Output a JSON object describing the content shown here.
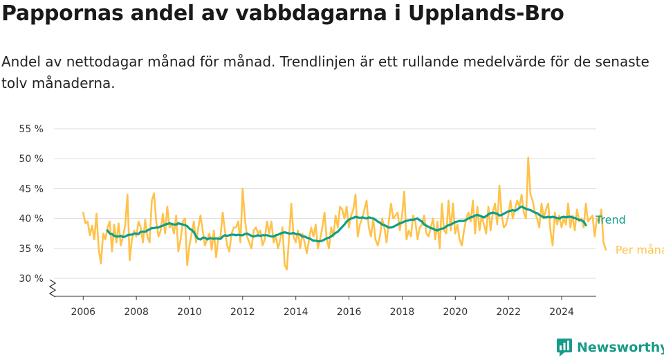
{
  "title": "Pappornas andel av vabbdagarna i Upplands-Bro",
  "subtitle": "Andel av nettodagar månad för månad. Trendlinjen är ett rullande medelvärde för de senaste tolv månaderna.",
  "brand": {
    "name": "Newsworthy"
  },
  "colors": {
    "monthly": "#ffc24a",
    "trend": "#0f9e8a",
    "grid": "#dddddd",
    "axis": "#333333",
    "brand": "#179a8a"
  },
  "chart_data": {
    "type": "line",
    "y_ticks": [
      "30 %",
      "35 %",
      "40 %",
      "45 %",
      "50 %",
      "55 %"
    ],
    "y_tick_values": [
      30,
      35,
      40,
      45,
      50,
      55
    ],
    "x_ticks": [
      "2006",
      "2008",
      "2010",
      "2012",
      "2014",
      "2016",
      "2018",
      "2020",
      "2022",
      "2024"
    ],
    "x_tick_values": [
      2006,
      2008,
      2010,
      2012,
      2014,
      2016,
      2018,
      2020,
      2022,
      2024
    ],
    "ylim": [
      27,
      55
    ],
    "xlim": [
      2004.9,
      2025.3
    ],
    "y_axis_break": true,
    "grid": true,
    "series": [
      {
        "name": "Per månad",
        "start": 2006.0,
        "step": 0.0833,
        "values": [
          41.0,
          39.2,
          39.5,
          37.2,
          38.8,
          36.5,
          40.8,
          35.0,
          32.5,
          37.5,
          36.5,
          38.5,
          39.5,
          34.5,
          39.0,
          36.0,
          39.2,
          35.5,
          37.0,
          39.0,
          44.0,
          33.0,
          36.5,
          38.0,
          37.0,
          39.5,
          38.5,
          36.0,
          39.8,
          37.0,
          36.0,
          43.0,
          44.2,
          39.5,
          37.0,
          38.0,
          40.8,
          37.5,
          42.0,
          38.5,
          39.0,
          37.5,
          40.5,
          34.5,
          36.5,
          39.5,
          40.0,
          32.2,
          35.5,
          37.5,
          39.5,
          36.0,
          38.5,
          40.5,
          38.0,
          35.5,
          36.5,
          37.5,
          34.8,
          38.0,
          33.5,
          36.8,
          37.0,
          41.0,
          38.0,
          35.5,
          34.5,
          37.5,
          38.5,
          38.5,
          39.5,
          36.0,
          45.0,
          40.0,
          37.0,
          36.0,
          35.0,
          38.0,
          38.5,
          37.5,
          38.0,
          35.5,
          36.5,
          39.5,
          37.5,
          39.5,
          36.0,
          37.0,
          35.0,
          36.5,
          38.5,
          32.2,
          31.5,
          37.0,
          42.5,
          37.0,
          36.0,
          38.0,
          35.0,
          37.5,
          36.0,
          34.2,
          36.5,
          38.5,
          37.0,
          39.0,
          35.0,
          36.5,
          38.5,
          41.0,
          36.5,
          35.0,
          38.5,
          37.0,
          40.5,
          38.5,
          42.0,
          41.5,
          40.0,
          42.0,
          38.5,
          40.5,
          41.5,
          44.0,
          37.0,
          39.0,
          40.0,
          41.5,
          43.0,
          38.5,
          37.0,
          40.0,
          36.5,
          35.5,
          37.0,
          40.0,
          38.5,
          36.0,
          39.5,
          42.5,
          40.0,
          40.5,
          41.0,
          38.0,
          40.5,
          44.5,
          36.5,
          38.0,
          37.0,
          40.5,
          39.5,
          36.5,
          38.5,
          39.0,
          40.5,
          37.5,
          37.0,
          38.5,
          40.0,
          36.5,
          39.5,
          35.0,
          42.5,
          38.0,
          37.5,
          43.0,
          38.0,
          42.5,
          37.5,
          39.0,
          36.5,
          35.5,
          38.0,
          40.0,
          41.0,
          39.5,
          43.0,
          37.5,
          42.0,
          38.0,
          40.5,
          39.0,
          37.5,
          42.0,
          38.0,
          41.0,
          42.5,
          39.0,
          45.5,
          40.5,
          38.5,
          39.0,
          40.5,
          43.0,
          40.0,
          41.5,
          43.0,
          42.0,
          44.0,
          41.0,
          40.0,
          50.2,
          44.0,
          43.0,
          41.0,
          40.0,
          38.5,
          42.5,
          40.0,
          41.5,
          42.5,
          38.0,
          35.5,
          41.0,
          39.0,
          40.5,
          38.5,
          40.0,
          39.0,
          42.5,
          38.5,
          40.5,
          38.0,
          41.5,
          39.5,
          40.0,
          38.5,
          42.5,
          39.5,
          40.0,
          40.5,
          37.0,
          40.0,
          39.5,
          41.5,
          36.0,
          34.8
        ]
      },
      {
        "name": "Trend",
        "start": 2006.9167,
        "step": 0.0833,
        "values": [
          38.0,
          37.5,
          37.4,
          37.1,
          37.0,
          37.0,
          37.1,
          36.9,
          37.0,
          37.2,
          37.3,
          37.3,
          37.5,
          37.5,
          37.4,
          37.8,
          37.8,
          37.8,
          38.0,
          38.2,
          38.4,
          38.4,
          38.5,
          38.5,
          38.7,
          38.8,
          39.0,
          39.1,
          39.2,
          39.1,
          39.0,
          39.0,
          39.2,
          39.1,
          39.0,
          38.9,
          38.7,
          38.3,
          38.1,
          37.7,
          37.0,
          36.6,
          36.5,
          36.8,
          36.8,
          36.5,
          36.7,
          36.7,
          36.6,
          36.7,
          36.6,
          36.6,
          37.0,
          37.2,
          37.1,
          37.2,
          37.3,
          37.3,
          37.2,
          37.3,
          37.2,
          37.2,
          37.4,
          37.5,
          37.3,
          37.1,
          37.0,
          37.1,
          37.2,
          37.1,
          37.2,
          37.2,
          37.2,
          37.1,
          37.0,
          37.0,
          37.2,
          37.3,
          37.5,
          37.6,
          37.7,
          37.6,
          37.5,
          37.5,
          37.6,
          37.4,
          37.4,
          37.3,
          37.0,
          37.0,
          36.8,
          36.7,
          36.5,
          36.3,
          36.3,
          36.2,
          36.2,
          36.3,
          36.5,
          36.7,
          36.8,
          37.0,
          37.3,
          37.6,
          37.8,
          38.2,
          38.6,
          39.0,
          39.5,
          39.8,
          40.0,
          40.1,
          40.3,
          40.2,
          40.1,
          40.2,
          40.1,
          40.0,
          40.2,
          40.1,
          40.0,
          39.8,
          39.5,
          39.3,
          39.0,
          38.9,
          38.7,
          38.5,
          38.5,
          38.6,
          38.8,
          39.0,
          39.2,
          39.3,
          39.5,
          39.6,
          39.7,
          39.8,
          39.8,
          39.9,
          40.0,
          39.7,
          39.5,
          39.0,
          38.8,
          38.6,
          38.4,
          38.3,
          38.1,
          38.0,
          38.2,
          38.3,
          38.4,
          38.7,
          38.9,
          39.0,
          39.2,
          39.4,
          39.5,
          39.6,
          39.6,
          39.6,
          39.8,
          40.0,
          40.2,
          40.3,
          40.5,
          40.6,
          40.5,
          40.3,
          40.2,
          40.4,
          40.7,
          40.9,
          41.0,
          40.9,
          40.8,
          40.5,
          40.6,
          40.8,
          41.0,
          41.2,
          41.3,
          41.4,
          41.3,
          41.5,
          41.8,
          42.0,
          41.8,
          41.6,
          41.5,
          41.4,
          41.2,
          41.0,
          40.9,
          40.6,
          40.4,
          40.2,
          40.2,
          40.3,
          40.2,
          40.3,
          40.2,
          40.1,
          40.0,
          40.2,
          40.3,
          40.2,
          40.3,
          40.3,
          40.2,
          40.1,
          39.9,
          39.8,
          39.7,
          39.5,
          38.9
        ]
      }
    ]
  }
}
